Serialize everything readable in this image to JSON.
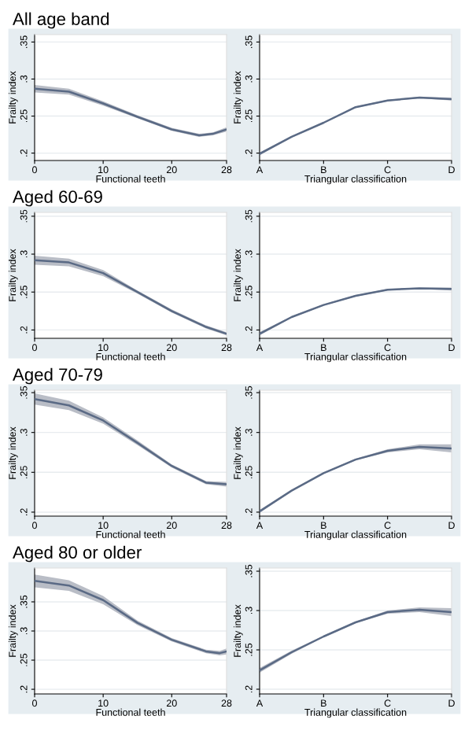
{
  "chart_data": [
    {
      "type": "line",
      "title": "All age band",
      "xlabel": "Functional teeth",
      "ylabel": "Frailty index",
      "x": [
        0,
        5,
        10,
        15,
        20,
        24,
        26,
        28
      ],
      "xlim": [
        0,
        28
      ],
      "xticks": [
        0,
        10,
        20,
        28
      ],
      "ylim": [
        0.19,
        0.36
      ],
      "yticks": [
        {
          "value": 0.2,
          "label": ".2"
        },
        {
          "value": 0.25,
          "label": ".25"
        },
        {
          "value": 0.3,
          "label": ".3"
        },
        {
          "value": 0.35,
          "label": ".35"
        }
      ],
      "grid": "y",
      "series": [
        {
          "color": "#5a6a85",
          "values": [
            0.287,
            0.283,
            0.267,
            0.249,
            0.232,
            0.224,
            0.226,
            0.232
          ],
          "lower": [
            0.282,
            0.279,
            0.264,
            0.247,
            0.23,
            0.222,
            0.224,
            0.229
          ],
          "upper": [
            0.292,
            0.287,
            0.27,
            0.251,
            0.234,
            0.226,
            0.228,
            0.235
          ]
        }
      ]
    },
    {
      "type": "line",
      "xlabel": "Triangular classification",
      "ylabel": "Frailty index",
      "categories": [
        "A",
        null,
        "B",
        null,
        "C",
        null,
        "D"
      ],
      "ylim": [
        0.19,
        0.36
      ],
      "yticks": [
        {
          "value": 0.2,
          "label": ".2"
        },
        {
          "value": 0.25,
          "label": ".25"
        },
        {
          "value": 0.3,
          "label": ".3"
        },
        {
          "value": 0.35,
          "label": ".35"
        }
      ],
      "grid": "y",
      "series": [
        {
          "color": "#5a6a85",
          "values": [
            0.199,
            0.222,
            0.241,
            0.262,
            0.271,
            0.275,
            0.273
          ],
          "lower": [
            0.197,
            0.221,
            0.24,
            0.261,
            0.27,
            0.274,
            0.271
          ],
          "upper": [
            0.201,
            0.223,
            0.242,
            0.263,
            0.272,
            0.276,
            0.275
          ]
        }
      ]
    },
    {
      "type": "line",
      "title": "Aged 60-69",
      "xlabel": "Functional teeth",
      "ylabel": "Frailty index",
      "x": [
        0,
        5,
        10,
        15,
        20,
        25,
        28
      ],
      "xlim": [
        0,
        28
      ],
      "xticks": [
        0,
        10,
        20,
        28
      ],
      "ylim": [
        0.189,
        0.355
      ],
      "yticks": [
        {
          "value": 0.2,
          "label": ".2"
        },
        {
          "value": 0.25,
          "label": ".25"
        },
        {
          "value": 0.3,
          "label": ".3"
        },
        {
          "value": 0.35,
          "label": ".35"
        }
      ],
      "grid": "y",
      "series": [
        {
          "color": "#5a6a85",
          "values": [
            0.292,
            0.289,
            0.275,
            0.25,
            0.225,
            0.204,
            0.195
          ],
          "lower": [
            0.286,
            0.284,
            0.271,
            0.248,
            0.223,
            0.202,
            0.193
          ],
          "upper": [
            0.298,
            0.294,
            0.279,
            0.252,
            0.227,
            0.206,
            0.197
          ]
        }
      ]
    },
    {
      "type": "line",
      "xlabel": "Triangular classification",
      "ylabel": "Frailty index",
      "categories": [
        "A",
        null,
        "B",
        null,
        "C",
        null,
        "D"
      ],
      "ylim": [
        0.189,
        0.355
      ],
      "yticks": [
        {
          "value": 0.2,
          "label": ".2"
        },
        {
          "value": 0.25,
          "label": ".25"
        },
        {
          "value": 0.3,
          "label": ".3"
        },
        {
          "value": 0.35,
          "label": ".35"
        }
      ],
      "grid": "y",
      "series": [
        {
          "color": "#5a6a85",
          "values": [
            0.195,
            0.217,
            0.233,
            0.245,
            0.253,
            0.255,
            0.254
          ],
          "lower": [
            0.193,
            0.216,
            0.232,
            0.244,
            0.252,
            0.254,
            0.252
          ],
          "upper": [
            0.197,
            0.218,
            0.234,
            0.246,
            0.254,
            0.256,
            0.256
          ]
        }
      ]
    },
    {
      "type": "line",
      "title": "Aged 70-79",
      "xlabel": "Functional teeth",
      "ylabel": "Frailty index",
      "x": [
        0,
        5,
        10,
        15,
        20,
        25,
        28
      ],
      "xlim": [
        0,
        28
      ],
      "xticks": [
        0,
        10,
        20,
        28
      ],
      "ylim": [
        0.195,
        0.353
      ],
      "yticks": [
        {
          "value": 0.2,
          "label": ".2"
        },
        {
          "value": 0.25,
          "label": ".25"
        },
        {
          "value": 0.3,
          "label": ".3"
        },
        {
          "value": 0.35,
          "label": ".35"
        }
      ],
      "grid": "y",
      "series": [
        {
          "color": "#5a6a85",
          "values": [
            0.342,
            0.334,
            0.315,
            0.287,
            0.258,
            0.237,
            0.235
          ],
          "lower": [
            0.335,
            0.328,
            0.311,
            0.284,
            0.256,
            0.235,
            0.232
          ],
          "upper": [
            0.349,
            0.34,
            0.319,
            0.29,
            0.26,
            0.239,
            0.238
          ]
        }
      ]
    },
    {
      "type": "line",
      "xlabel": "Triangular classification",
      "ylabel": "Frailty index",
      "categories": [
        "A",
        null,
        "B",
        null,
        "C",
        null,
        "D"
      ],
      "ylim": [
        0.195,
        0.353
      ],
      "yticks": [
        {
          "value": 0.2,
          "label": ".2"
        },
        {
          "value": 0.25,
          "label": ".25"
        },
        {
          "value": 0.3,
          "label": ".3"
        },
        {
          "value": 0.35,
          "label": ".35"
        }
      ],
      "grid": "y",
      "series": [
        {
          "color": "#5a6a85",
          "values": [
            0.201,
            0.227,
            0.249,
            0.266,
            0.277,
            0.282,
            0.28
          ],
          "lower": [
            0.199,
            0.226,
            0.248,
            0.265,
            0.275,
            0.279,
            0.275
          ],
          "upper": [
            0.203,
            0.228,
            0.25,
            0.267,
            0.279,
            0.285,
            0.285
          ]
        }
      ]
    },
    {
      "type": "line",
      "title": "Aged 80 or older",
      "xlabel": "Functional teeth",
      "ylabel": "Frailty index",
      "x": [
        0,
        5,
        10,
        15,
        20,
        25,
        27,
        28
      ],
      "xlim": [
        0,
        28
      ],
      "xticks": [
        0,
        10,
        20,
        28
      ],
      "ylim": [
        0.192,
        0.408
      ],
      "yticks": [
        {
          "value": 0.2,
          "label": ".2"
        },
        {
          "value": 0.25,
          "label": ".25"
        },
        {
          "value": 0.3,
          "label": ".3"
        },
        {
          "value": 0.35,
          "label": ".35"
        }
      ],
      "grid": "y",
      "series": [
        {
          "color": "#5a6a85",
          "values": [
            0.386,
            0.378,
            0.353,
            0.314,
            0.285,
            0.265,
            0.262,
            0.265
          ],
          "lower": [
            0.375,
            0.369,
            0.346,
            0.31,
            0.282,
            0.262,
            0.258,
            0.26
          ],
          "upper": [
            0.397,
            0.387,
            0.36,
            0.318,
            0.288,
            0.268,
            0.266,
            0.27
          ]
        }
      ]
    },
    {
      "type": "line",
      "xlabel": "Triangular classification",
      "ylabel": "Frailty index",
      "categories": [
        "A",
        null,
        "B",
        null,
        "C",
        null,
        "D"
      ],
      "ylim": [
        0.194,
        0.354
      ],
      "yticks": [
        {
          "value": 0.2,
          "label": ".2"
        },
        {
          "value": 0.25,
          "label": ".25"
        },
        {
          "value": 0.3,
          "label": ".3"
        },
        {
          "value": 0.35,
          "label": ".35"
        }
      ],
      "grid": "y",
      "series": [
        {
          "color": "#5a6a85",
          "values": [
            0.224,
            0.247,
            0.267,
            0.285,
            0.298,
            0.301,
            0.298
          ],
          "lower": [
            0.221,
            0.245,
            0.266,
            0.284,
            0.296,
            0.298,
            0.293
          ],
          "upper": [
            0.227,
            0.249,
            0.268,
            0.286,
            0.3,
            0.304,
            0.303
          ]
        }
      ]
    }
  ]
}
